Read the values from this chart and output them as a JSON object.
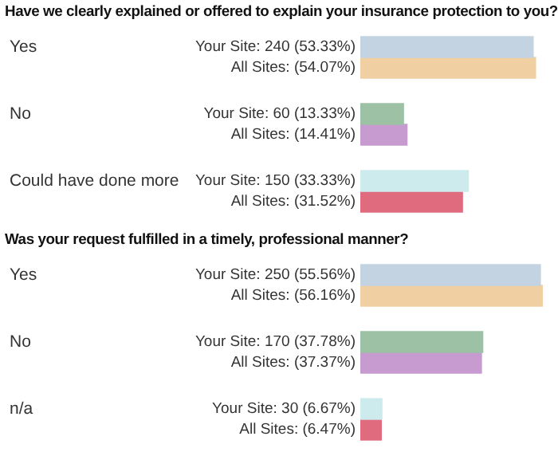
{
  "chart_data": [
    {
      "type": "bar",
      "orientation": "horizontal",
      "title": "Have we clearly explained or offered to explain your insurance protection to you?",
      "categories": [
        "Yes",
        "No",
        "Could have done more"
      ],
      "tick_labels": false,
      "legend": false,
      "series": [
        {
          "colors": [
            "#c3d3e1",
            "#9cc1a4",
            "#cdeaed"
          ],
          "values": [
            53.33,
            13.33,
            33.33
          ],
          "value_labels": [
            "Your Site: 240 (53.33%)",
            "Your Site: 60 (13.33%)",
            "Your Site: 150 (33.33%)"
          ]
        },
        {
          "colors": [
            "#f0cfa3",
            "#c89bd0",
            "#e06b7f"
          ],
          "values": [
            54.07,
            14.41,
            31.52
          ],
          "value_labels": [
            "All Sites: (54.07%)",
            "All Sites: (14.41%)",
            "All Sites: (31.52%)"
          ]
        }
      ]
    },
    {
      "type": "bar",
      "orientation": "horizontal",
      "title": "Was your request fulfilled in a timely, professional manner?",
      "categories": [
        "Yes",
        "No",
        "n/a"
      ],
      "tick_labels": false,
      "legend": false,
      "series": [
        {
          "colors": [
            "#c3d3e1",
            "#9cc1a4",
            "#cdeaed"
          ],
          "values": [
            55.56,
            37.78,
            6.67
          ],
          "value_labels": [
            "Your Site: 250 (55.56%)",
            "Your Site: 170 (37.78%)",
            "Your Site: 30 (6.67%)"
          ]
        },
        {
          "colors": [
            "#f0cfa3",
            "#c89bd0",
            "#e06b7f"
          ],
          "values": [
            56.16,
            37.37,
            6.47
          ],
          "value_labels": [
            "All Sites: (56.16%)",
            "All Sites: (37.37%)",
            "All Sites: (6.47%)"
          ]
        }
      ]
    }
  ]
}
